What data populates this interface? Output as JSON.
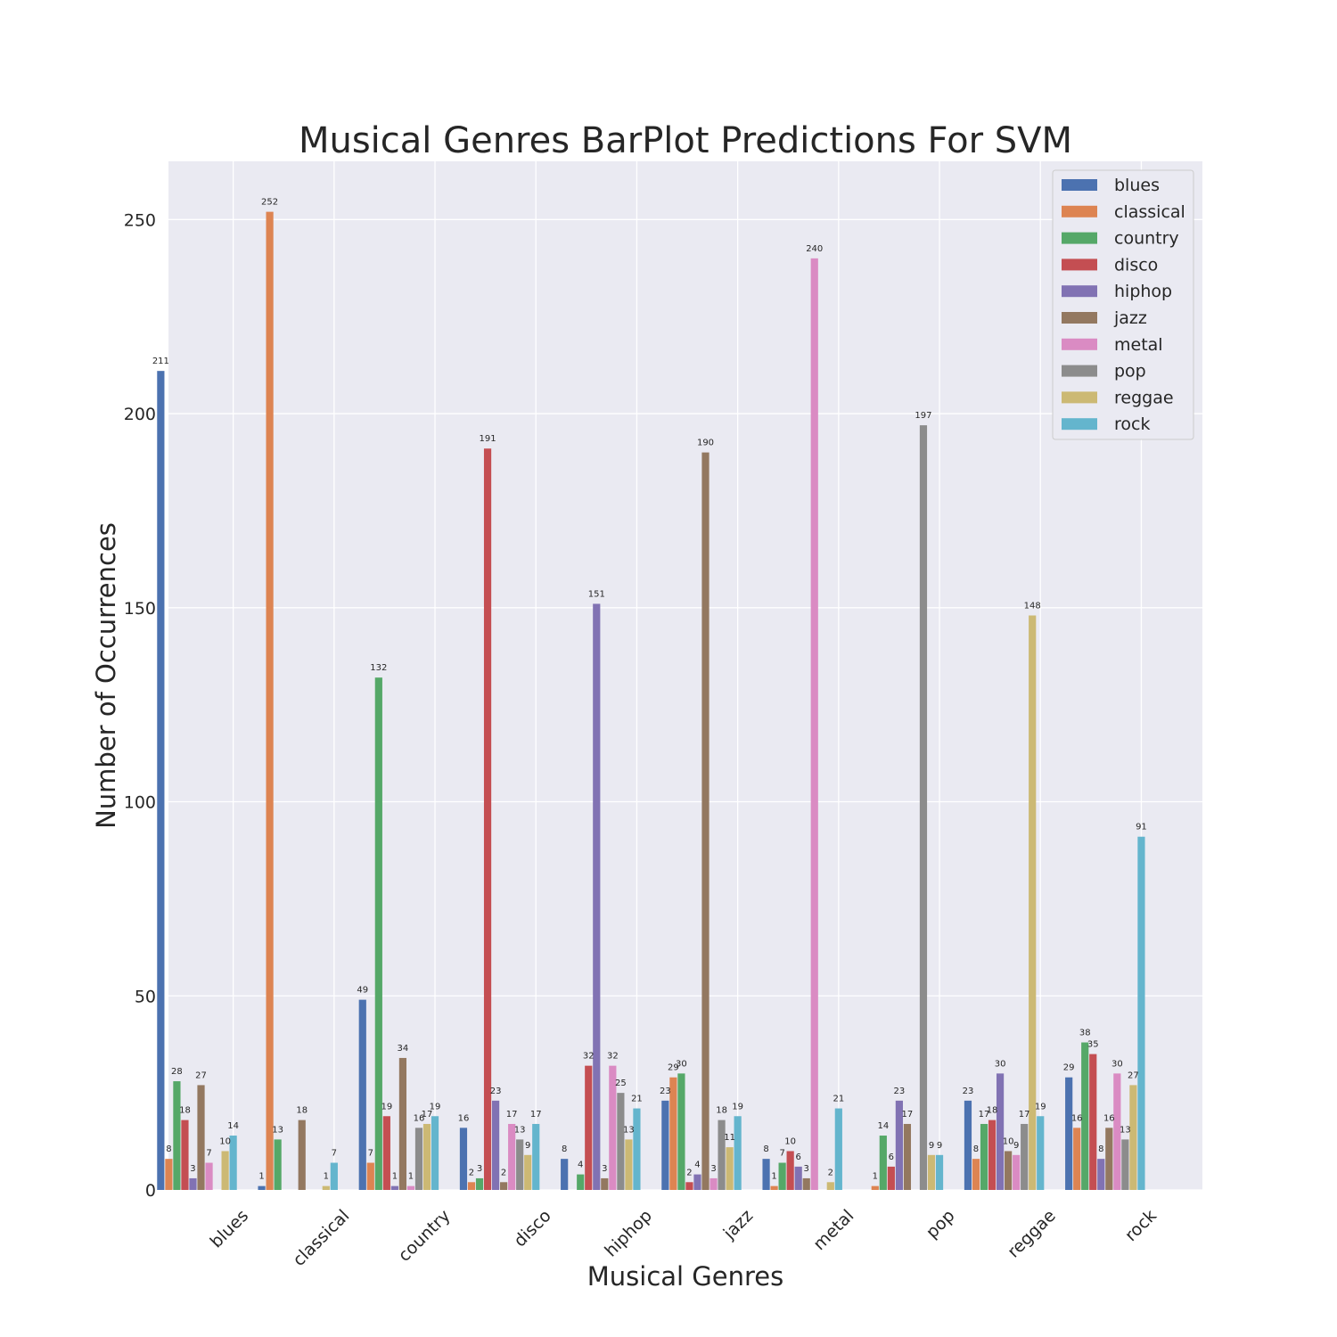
{
  "chart_data": {
    "type": "bar",
    "title": "Musical Genres BarPlot Predictions For SVM",
    "xlabel": "Musical Genres",
    "ylabel": "Number of Occurrences",
    "ylim": [
      0,
      265
    ],
    "yticks": [
      0,
      50,
      100,
      150,
      200,
      250
    ],
    "grid": true,
    "legend_position": "top-right",
    "categories": [
      "blues",
      "classical",
      "country",
      "disco",
      "hiphop",
      "jazz",
      "metal",
      "pop",
      "reggae",
      "rock"
    ],
    "series": [
      {
        "name": "blues",
        "color": "#4c72b0",
        "values": [
          211,
          1,
          49,
          16,
          8,
          23,
          8,
          0,
          23,
          29
        ]
      },
      {
        "name": "classical",
        "color": "#dd8452",
        "values": [
          8,
          252,
          7,
          2,
          0,
          29,
          1,
          1,
          8,
          16
        ]
      },
      {
        "name": "country",
        "color": "#55a868",
        "values": [
          28,
          13,
          132,
          3,
          4,
          30,
          7,
          14,
          17,
          38
        ]
      },
      {
        "name": "disco",
        "color": "#c44e52",
        "values": [
          18,
          0,
          19,
          191,
          32,
          2,
          10,
          6,
          18,
          35
        ]
      },
      {
        "name": "hiphop",
        "color": "#8172b3",
        "values": [
          3,
          0,
          1,
          23,
          151,
          4,
          6,
          23,
          30,
          8
        ]
      },
      {
        "name": "jazz",
        "color": "#937860",
        "values": [
          27,
          18,
          34,
          2,
          3,
          190,
          3,
          17,
          10,
          16
        ]
      },
      {
        "name": "metal",
        "color": "#da8bc3",
        "values": [
          7,
          0,
          1,
          17,
          32,
          3,
          240,
          0,
          9,
          30
        ]
      },
      {
        "name": "pop",
        "color": "#8c8c8c",
        "values": [
          0,
          0,
          16,
          13,
          25,
          18,
          0,
          197,
          17,
          13
        ]
      },
      {
        "name": "reggae",
        "color": "#ccb974",
        "values": [
          10,
          1,
          17,
          9,
          13,
          11,
          2,
          9,
          148,
          27
        ]
      },
      {
        "name": "rock",
        "color": "#64b5cd",
        "values": [
          14,
          7,
          19,
          17,
          21,
          19,
          21,
          9,
          19,
          91
        ]
      }
    ],
    "colors": {
      "plot_background": "#eaeaf2",
      "grid": "#ffffff",
      "text": "#262626"
    }
  }
}
